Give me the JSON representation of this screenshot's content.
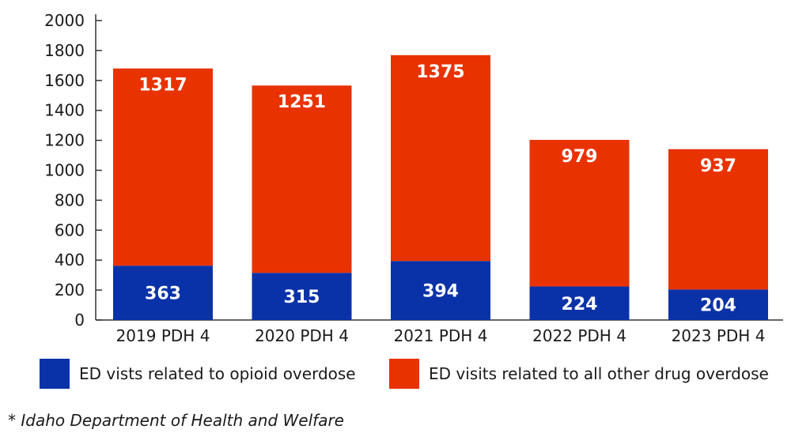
{
  "chart_data": {
    "type": "bar",
    "stacked": true,
    "categories": [
      "2019 PDH 4",
      "2020 PDH 4",
      "2021 PDH 4",
      "2022 PDH 4",
      "2023 PDH 4"
    ],
    "series": [
      {
        "name": "ED vists related to opioid overdose",
        "values": [
          363,
          315,
          394,
          224,
          204
        ],
        "color": "#0a32a8"
      },
      {
        "name": "ED visits related to all other drug overdose",
        "values": [
          1317,
          1251,
          1375,
          979,
          937
        ],
        "color": "#e83200"
      }
    ],
    "yticks": [
      0,
      200,
      400,
      600,
      800,
      1000,
      1200,
      1400,
      1600,
      1800,
      2000
    ],
    "ylim": [
      0,
      2000
    ],
    "grid": false,
    "legend_position": "bottom"
  },
  "footnote": "* Idaho Department of Health and Welfare"
}
